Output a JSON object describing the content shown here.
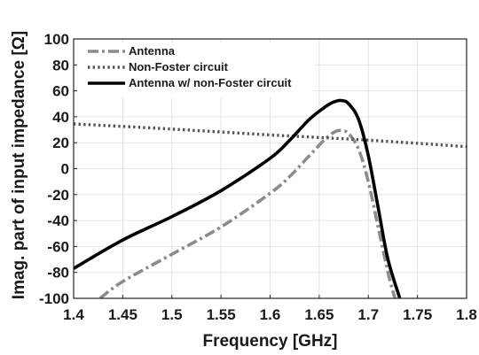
{
  "chart_data": {
    "type": "line",
    "title": "",
    "xlabel": "Frequency [GHz]",
    "ylabel": "Imag. part of input impedance [Ω]",
    "xlim": [
      1.4,
      1.8
    ],
    "ylim": [
      -100,
      100
    ],
    "xticks": [
      "1.4",
      "1.45",
      "1.5",
      "1.55",
      "1.6",
      "1.65",
      "1.7",
      "1.75",
      "1.8"
    ],
    "yticks": [
      "-100",
      "-80",
      "-60",
      "-40",
      "-20",
      "0",
      "20",
      "40",
      "60",
      "80",
      "100"
    ],
    "grid": true,
    "legend_position": "top-left",
    "series": [
      {
        "name": "Antenna",
        "style": "dashdot",
        "color": "#8c8c8c",
        "x": [
          1.427,
          1.45,
          1.5,
          1.55,
          1.6,
          1.62,
          1.64,
          1.655,
          1.665,
          1.672,
          1.68,
          1.69,
          1.7,
          1.71,
          1.72,
          1.727
        ],
        "y": [
          -100,
          -87,
          -66,
          -45,
          -19,
          -6,
          10,
          22,
          28,
          29.5,
          27,
          15,
          -10,
          -45,
          -80,
          -100
        ]
      },
      {
        "name": "Non-Foster circuit",
        "style": "dotted",
        "color": "#555555",
        "x": [
          1.4,
          1.5,
          1.6,
          1.7,
          1.8
        ],
        "y": [
          34.5,
          30.5,
          26,
          22,
          17
        ]
      },
      {
        "name": "Antenna w/ non-Foster circuit",
        "style": "solid",
        "color": "#000000",
        "x": [
          1.4,
          1.45,
          1.5,
          1.55,
          1.6,
          1.62,
          1.64,
          1.655,
          1.665,
          1.673,
          1.68,
          1.69,
          1.7,
          1.71,
          1.72,
          1.732
        ],
        "y": [
          -77,
          -55,
          -37,
          -17,
          8,
          22,
          38,
          47,
          51.5,
          52.5,
          50,
          38,
          10,
          -30,
          -70,
          -100
        ]
      }
    ]
  }
}
